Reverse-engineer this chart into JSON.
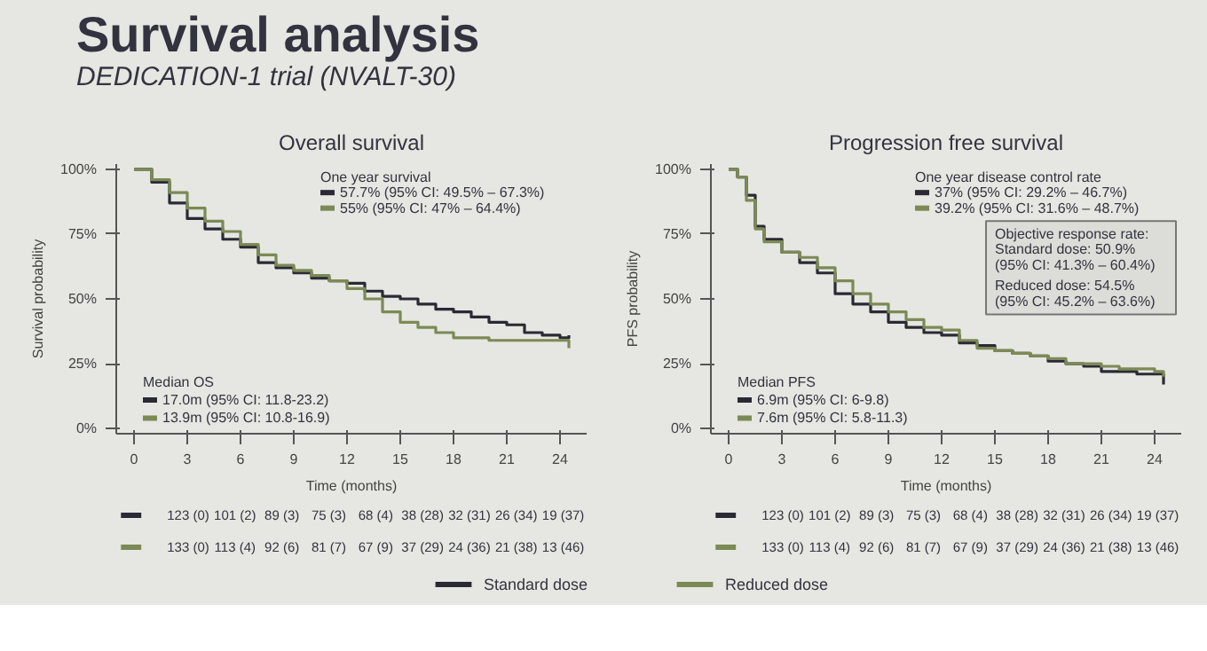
{
  "chart_data": [
    {
      "type": "other",
      "title": "Survival analysis",
      "subtitle": "DEDICATION-1 trial  (NVALT-30)"
    },
    {
      "type": "step",
      "title": "Overall survival",
      "xlabel": "Time (months)",
      "ylabel": "Survival probability",
      "xlim": [
        -1,
        25.5
      ],
      "ylim": [
        -2,
        102
      ],
      "xticks": [
        0,
        3,
        6,
        9,
        12,
        15,
        18,
        21,
        24
      ],
      "yticks": [
        {
          "value": 0,
          "label": "0%"
        },
        {
          "value": 25,
          "label": "25%"
        },
        {
          "value": 50,
          "label": "50%"
        },
        {
          "value": 75,
          "label": "75%"
        },
        {
          "value": 100,
          "label": "100%"
        }
      ],
      "legend": "bottom",
      "series": [
        {
          "name": "Standard dose",
          "color": "#2a2a35",
          "x": [
            0,
            1,
            2,
            3,
            4,
            5,
            6,
            7,
            8,
            9,
            10,
            11,
            12,
            13,
            14,
            15,
            16,
            17,
            18,
            19,
            20,
            21,
            22,
            23,
            24,
            24.5
          ],
          "values": [
            100,
            95,
            87,
            81,
            77,
            73,
            70,
            64,
            62,
            60,
            58,
            57,
            56,
            53,
            51,
            50,
            48,
            46,
            45,
            43,
            41,
            40,
            37,
            36,
            35,
            36
          ]
        },
        {
          "name": "Reduced dose",
          "color": "#7b8a55",
          "x": [
            0,
            1,
            2,
            3,
            4,
            5,
            6,
            7,
            8,
            9,
            10,
            11,
            12,
            13,
            14,
            15,
            16,
            17,
            18,
            19,
            20,
            21,
            22,
            23,
            24,
            24.5
          ],
          "values": [
            100,
            96,
            91,
            85,
            80,
            76,
            71,
            67,
            63,
            61,
            59,
            57,
            54,
            50,
            45,
            41,
            39,
            37,
            35,
            35,
            34,
            34,
            34,
            34,
            34,
            31
          ]
        }
      ],
      "annotations": [
        "One year survival",
        "57.7% (95% CI: 49.5% – 67.3%)",
        "55% (95% CI: 47% – 64.4%)",
        "Median OS",
        "17.0m (95% CI: 11.8-23.2)",
        "13.9m (95% CI: 10.8-16.9)",
        "123 (0)  101 (2)  89 (3)  75 (3)  68 (4)  38 (28)  32 (31)  26 (34)  19 (37)",
        "133 (0)  113 (4)  92 (6)  81 (7)  67 (9)  37 (29)  24 (36)  21 (38)  13 (46)"
      ]
    },
    {
      "type": "step",
      "title": "Progression free survival",
      "xlabel": "Time (months)",
      "ylabel": "PFS probability",
      "xlim": [
        -1,
        25.5
      ],
      "ylim": [
        -2,
        102
      ],
      "xticks": [
        0,
        3,
        6,
        9,
        12,
        15,
        18,
        21,
        24
      ],
      "yticks": [
        {
          "value": 0,
          "label": "0%"
        },
        {
          "value": 25,
          "label": "25%"
        },
        {
          "value": 50,
          "label": "50%"
        },
        {
          "value": 75,
          "label": "75%"
        },
        {
          "value": 100,
          "label": "100%"
        }
      ],
      "series": [
        {
          "color": "#2a2a35",
          "x": [
            0,
            0.5,
            1,
            1.5,
            2,
            3,
            4,
            5,
            6,
            7,
            8,
            9,
            10,
            11,
            12,
            13,
            14,
            15,
            16,
            17,
            18,
            19,
            20,
            21,
            22,
            23,
            24,
            24.5
          ],
          "values": [
            100,
            97,
            90,
            78,
            73,
            68,
            64,
            60,
            52,
            48,
            45,
            41,
            39,
            37,
            36,
            33,
            32,
            30,
            29,
            28,
            26,
            25,
            24,
            22,
            22,
            21,
            21,
            17
          ]
        },
        {
          "color": "#7b8a55",
          "x": [
            0,
            0.5,
            1,
            1.5,
            2,
            3,
            4,
            5,
            6,
            7,
            8,
            9,
            10,
            11,
            12,
            13,
            14,
            15,
            16,
            17,
            18,
            19,
            20,
            21,
            22,
            23,
            24,
            24.5
          ],
          "values": [
            100,
            97,
            88,
            77,
            72,
            68,
            66,
            62,
            57,
            52,
            48,
            45,
            42,
            39,
            38,
            34,
            31,
            30,
            29,
            28,
            27,
            25,
            25,
            24,
            23,
            23,
            22,
            20
          ]
        }
      ],
      "annotations": [
        "One year disease control rate",
        "37% (95% CI: 29.2% – 46.7%)",
        "39.2% (95% CI: 31.6% – 48.7%)",
        "Median PFS",
        "6.9m (95% CI: 6-9.8)",
        "7.6m (95% CI: 5.8-11.3)",
        "Objective response rate:",
        "Standard dose: 50.9%",
        "(95% CI: 41.3% – 60.4%)",
        "Reduced dose: 54.5%",
        "(95% CI: 45.2% – 63.6%)",
        "123 (0)  101 (2)  89 (3)  75 (3)  68 (4)  38 (28)  32 (31)  26 (34)  19 (37)",
        "133 (0)  113 (4)  92 (6)  81 (7)  67 (9)  37 (29)  24 (36)  21 (38)  13 (46)"
      ]
    }
  ]
}
